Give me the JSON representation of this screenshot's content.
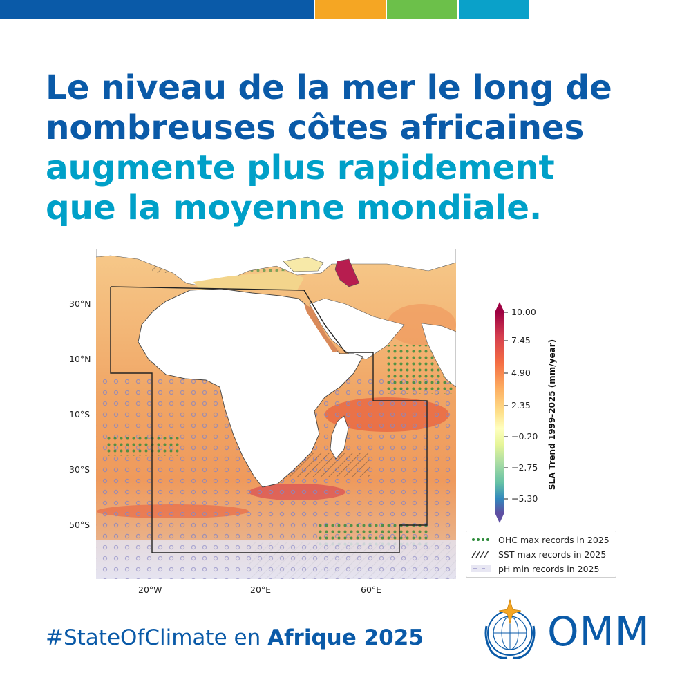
{
  "headline": {
    "line1": "Le niveau de la mer le long de",
    "line2": "nombreuses côtes africaines",
    "line3": "augmente plus rapidement",
    "line4": "que la moyenne mondiale."
  },
  "colors": {
    "blue": "#0a5aa8",
    "cyan": "#00a0c8",
    "orange": "#f5a623",
    "green": "#6cc04a",
    "teal": "#0aa1c9"
  },
  "map": {
    "lat_labels": [
      "30°N",
      "10°N",
      "10°S",
      "30°S",
      "50°S"
    ],
    "lon_labels": [
      "20°W",
      "20°E",
      "60°E"
    ],
    "colorbar": {
      "title": "SLA Trend 1999-2025 (mm/year)",
      "ticks": [
        "10.00",
        "7.45",
        "4.90",
        "2.35",
        "−0.20",
        "−2.75",
        "−5.30"
      ]
    },
    "legend": [
      {
        "label": "OHC max records in 2025",
        "icon": "green-stars"
      },
      {
        "label": "SST max records in 2025",
        "icon": "hatch-lines"
      },
      {
        "label": "pH min records in 2025",
        "icon": "dashes"
      }
    ]
  },
  "footer": {
    "hashtag": "#StateOfClimate en ",
    "bold": "Afrique 2025"
  },
  "logo": {
    "text": "OMM",
    "icon": "wmo-emblem-icon"
  }
}
